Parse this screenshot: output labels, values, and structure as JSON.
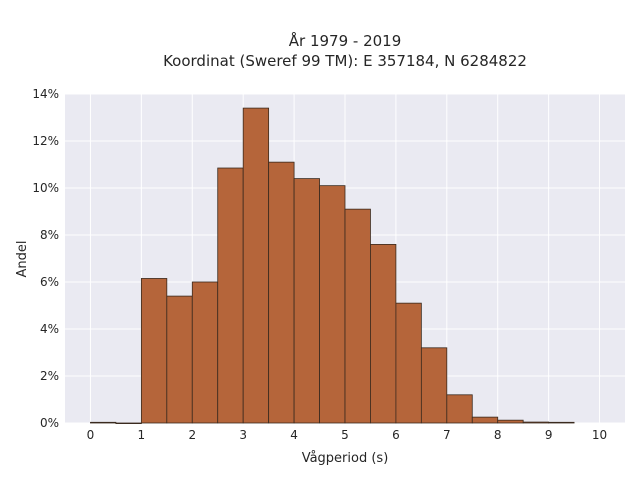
{
  "chart_data": {
    "type": "bar",
    "title_line1": "År 1979 - 2019",
    "title_line2": "Koordinat (Sweref 99 TM): E 357184, N 6284822",
    "xlabel": "Vågperiod (s)",
    "ylabel": "Andel",
    "xlim": [
      -0.5,
      10.5
    ],
    "ylim": [
      0,
      14
    ],
    "xticks": [
      "0",
      "1",
      "2",
      "3",
      "4",
      "5",
      "6",
      "7",
      "8",
      "9",
      "10"
    ],
    "yticks": [
      "0%",
      "2%",
      "4%",
      "6%",
      "8%",
      "10%",
      "12%",
      "14%"
    ],
    "bin_width": 0.5,
    "bins": [
      {
        "x0": 0.0,
        "value": 0.03
      },
      {
        "x0": 0.5,
        "value": 0.0
      },
      {
        "x0": 1.0,
        "value": 6.15
      },
      {
        "x0": 1.5,
        "value": 5.4
      },
      {
        "x0": 2.0,
        "value": 6.0
      },
      {
        "x0": 2.5,
        "value": 10.85
      },
      {
        "x0": 3.0,
        "value": 13.4
      },
      {
        "x0": 3.5,
        "value": 11.1
      },
      {
        "x0": 4.0,
        "value": 10.4
      },
      {
        "x0": 4.5,
        "value": 10.1
      },
      {
        "x0": 5.0,
        "value": 9.1
      },
      {
        "x0": 5.5,
        "value": 7.6
      },
      {
        "x0": 6.0,
        "value": 5.1
      },
      {
        "x0": 6.5,
        "value": 3.2
      },
      {
        "x0": 7.0,
        "value": 1.2
      },
      {
        "x0": 7.5,
        "value": 0.25
      },
      {
        "x0": 8.0,
        "value": 0.12
      },
      {
        "x0": 8.5,
        "value": 0.04
      },
      {
        "x0": 9.0,
        "value": 0.03
      }
    ],
    "grid": true,
    "colors": {
      "bar_fill": "#b5653a",
      "bar_edge": "#3a2a1e",
      "plot_background": "#eaeaf2",
      "grid": "#ffffff"
    }
  }
}
